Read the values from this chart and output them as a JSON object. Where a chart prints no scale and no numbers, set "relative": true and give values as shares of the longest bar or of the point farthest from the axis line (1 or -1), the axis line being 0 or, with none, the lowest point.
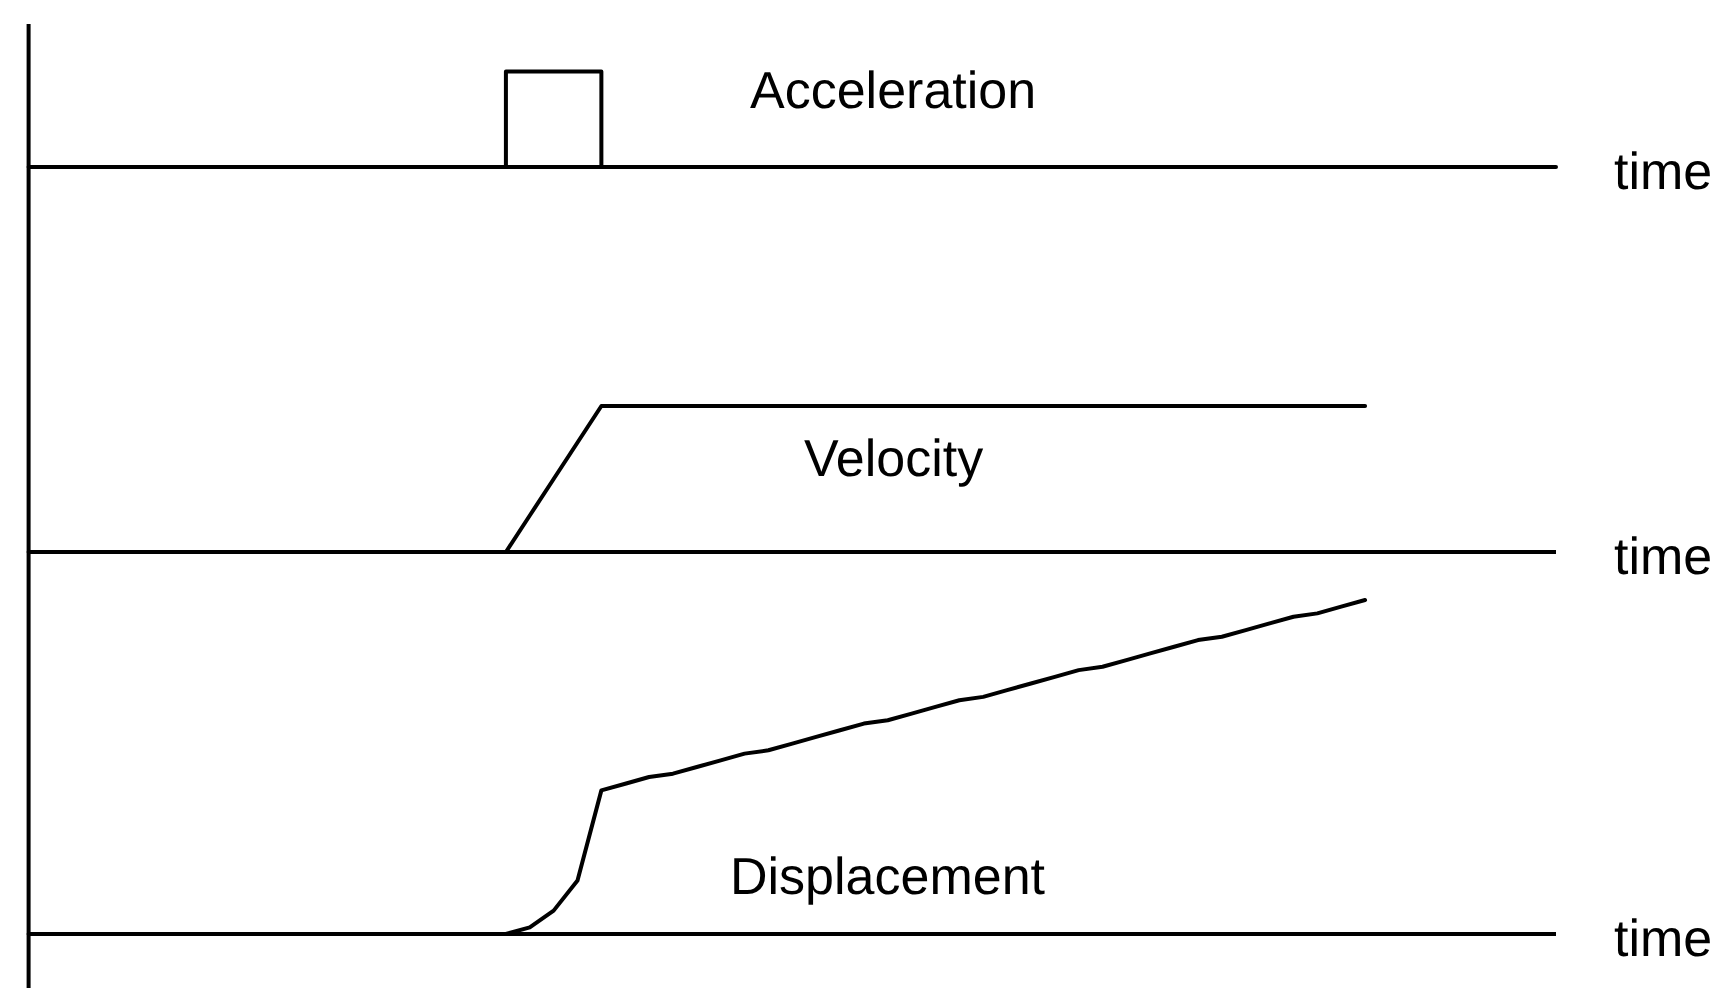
{
  "chart_data": [
    {
      "type": "step",
      "relative": true,
      "xlabel": "time",
      "categories": [
        null,
        null,
        null,
        null,
        null,
        null,
        null,
        null,
        null,
        null,
        null,
        null,
        null,
        null,
        null,
        null,
        null,
        null,
        null,
        null,
        null,
        null,
        null,
        null,
        null,
        null,
        null,
        null,
        null,
        null,
        null,
        null,
        null,
        null,
        null,
        null,
        null,
        null,
        null,
        null,
        null,
        null,
        null,
        null,
        null,
        null,
        null,
        null,
        null,
        null,
        null,
        null,
        null,
        null,
        null,
        null,
        null,
        null,
        null,
        null,
        null,
        null,
        null,
        null,
        null
      ],
      "series": [
        {
          "name": "Acceleration",
          "color": "#000000",
          "values": [
            0,
            0,
            0,
            0,
            0,
            0,
            0,
            0,
            0,
            0,
            0,
            0,
            0,
            0,
            0,
            0,
            0,
            0,
            0,
            0,
            1,
            1,
            1,
            1,
            0,
            0,
            0,
            0,
            0,
            0,
            0,
            0,
            0,
            0,
            0,
            0,
            0,
            0,
            0,
            0,
            0,
            0,
            0,
            0,
            0,
            0,
            0,
            0,
            0,
            0,
            0,
            0,
            0,
            0,
            0,
            0,
            0,
            0,
            0,
            0,
            0,
            0,
            0,
            0,
            0
          ]
        }
      ]
    },
    {
      "type": "line",
      "relative": true,
      "xlabel": "time",
      "categories": [
        null,
        null,
        null,
        null,
        null,
        null,
        null,
        null,
        null,
        null,
        null,
        null,
        null,
        null,
        null,
        null,
        null,
        null,
        null,
        null,
        null,
        null,
        null,
        null,
        null,
        null,
        null,
        null,
        null,
        null,
        null,
        null,
        null,
        null,
        null,
        null,
        null,
        null,
        null,
        null,
        null,
        null,
        null,
        null,
        null,
        null,
        null,
        null,
        null,
        null,
        null,
        null,
        null,
        null,
        null,
        null,
        null,
        null,
        null,
        null,
        null,
        null,
        null,
        null,
        null
      ],
      "series": [
        {
          "name": "Velocity",
          "color": "#000000",
          "values": [
            0,
            0,
            0,
            0,
            0,
            0,
            0,
            0,
            0,
            0,
            0,
            0,
            0,
            0,
            0,
            0,
            0,
            0,
            0,
            0,
            0,
            0.25,
            0.5,
            0.75,
            1,
            1,
            1,
            1,
            1,
            1,
            1,
            1,
            1,
            1,
            1,
            1,
            1,
            1,
            1,
            1,
            1,
            1,
            1,
            1,
            1,
            1,
            1,
            1,
            1,
            1,
            1,
            1,
            1,
            1,
            1,
            1,
            1,
            null,
            null,
            null,
            null,
            null,
            null,
            null,
            null
          ]
        }
      ]
    },
    {
      "type": "line",
      "relative": true,
      "xlabel": "time",
      "categories": [
        null,
        null,
        null,
        null,
        null,
        null,
        null,
        null,
        null,
        null,
        null,
        null,
        null,
        null,
        null,
        null,
        null,
        null,
        null,
        null,
        null,
        null,
        null,
        null,
        null,
        null,
        null,
        null,
        null,
        null,
        null,
        null,
        null,
        null,
        null,
        null,
        null,
        null,
        null,
        null,
        null,
        null,
        null,
        null,
        null,
        null,
        null,
        null,
        null,
        null,
        null,
        null,
        null,
        null,
        null,
        null,
        null,
        null,
        null,
        null,
        null,
        null,
        null,
        null,
        null
      ],
      "series": [
        {
          "name": "Displacement",
          "color": "#000000",
          "values": [
            0,
            0,
            0,
            0,
            0,
            0,
            0,
            0,
            0,
            0,
            0,
            0,
            0,
            0,
            0,
            0,
            0,
            0,
            0,
            0,
            0,
            0.02,
            0.07,
            0.16,
            0.43,
            0.45,
            0.47,
            0.48,
            0.5,
            0.52,
            0.54,
            0.55,
            0.57,
            0.59,
            0.61,
            0.63,
            0.64,
            0.66,
            0.68,
            0.7,
            0.71,
            0.73,
            0.75,
            0.77,
            0.79,
            0.8,
            0.82,
            0.84,
            0.86,
            0.88,
            0.89,
            0.91,
            0.93,
            0.95,
            0.96,
            0.98,
            1,
            null,
            null,
            null,
            null,
            null,
            null,
            null,
            null
          ]
        }
      ]
    }
  ]
}
